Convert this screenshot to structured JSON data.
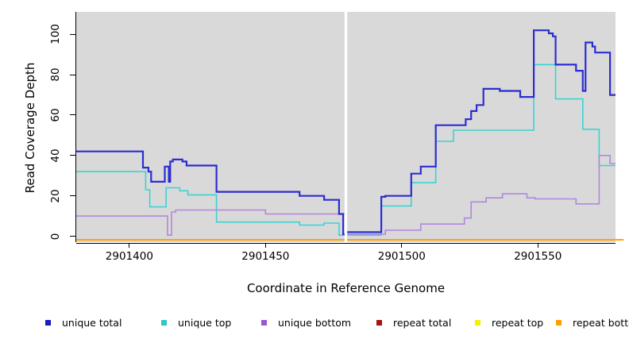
{
  "chart_data": {
    "type": "line",
    "subtype": "step",
    "title": "",
    "xlabel": "Coordinate in Reference Genome",
    "ylabel": "Read Coverage Depth",
    "xlim": [
      2901380.5,
      2901578.5
    ],
    "ylim": [
      0,
      100
    ],
    "x_ticks": [
      2901400,
      2901450,
      2901500,
      2901550
    ],
    "y_ticks": [
      0,
      20,
      40,
      60,
      80,
      100
    ],
    "gap_x": [
      2901479,
      2901480
    ],
    "plot_bg": "#d9d9d9",
    "grid": false,
    "legend_position": "bottom",
    "series": [
      {
        "name": "repeat total",
        "color": "#c00000",
        "line_width": 1.5,
        "segments": [
          [
            [
              2901380.5,
              0
            ],
            [
              2901479,
              0
            ]
          ],
          [
            [
              2901480,
              0
            ],
            [
              2901578.5,
              0
            ]
          ]
        ]
      },
      {
        "name": "repeat top",
        "color": "#f2f200",
        "line_width": 1.5,
        "segments": [
          [
            [
              2901380.5,
              0
            ],
            [
              2901479,
              0
            ]
          ],
          [
            [
              2901480,
              0
            ],
            [
              2901578.5,
              0
            ]
          ]
        ]
      },
      {
        "name": "repeat bottom",
        "color": "#ffa500",
        "line_width": 2,
        "segments": [
          [
            [
              2901380.5,
              0
            ],
            [
              2901479,
              0
            ]
          ],
          [
            [
              2901480,
              0
            ],
            [
              2901581.5,
              0
            ]
          ]
        ]
      },
      {
        "name": "unique top",
        "color": "#3ad3d3",
        "line_width": 1.6,
        "segments": [
          [
            [
              2901380.5,
              32
            ],
            [
              2901406,
              23
            ],
            [
              2901407.5,
              14.5
            ],
            [
              2901413.5,
              24
            ],
            [
              2901418.5,
              22.5
            ],
            [
              2901421.5,
              20.5
            ],
            [
              2901432,
              7
            ],
            [
              2901462.5,
              5.5
            ],
            [
              2901471.5,
              6.5
            ],
            [
              2901477,
              0.5
            ],
            [
              2901479,
              0.5
            ]
          ],
          [
            [
              2901480,
              0.5
            ],
            [
              2901492.5,
              15
            ],
            [
              2901503.5,
              26.5
            ],
            [
              2901512.5,
              47
            ],
            [
              2901519,
              52.5
            ],
            [
              2901548.5,
              85
            ],
            [
              2901556.5,
              68
            ],
            [
              2901566.5,
              53
            ],
            [
              2901572.5,
              35
            ],
            [
              2901578.5,
              35
            ]
          ]
        ]
      },
      {
        "name": "unique bottom",
        "color": "#b287dd",
        "line_width": 1.6,
        "segments": [
          [
            [
              2901380.5,
              10
            ],
            [
              2901414,
              0.5
            ],
            [
              2901415.5,
              12
            ],
            [
              2901417,
              13
            ],
            [
              2901450,
              11
            ],
            [
              2901479,
              11
            ]
          ],
          [
            [
              2901480,
              1
            ],
            [
              2901494,
              3
            ],
            [
              2901507,
              6
            ],
            [
              2901523,
              9
            ],
            [
              2901525.5,
              17
            ],
            [
              2901531,
              19
            ],
            [
              2901537,
              21
            ],
            [
              2901546,
              19
            ],
            [
              2901549,
              18.5
            ],
            [
              2901564,
              16
            ],
            [
              2901572.5,
              40
            ],
            [
              2901576.5,
              36
            ],
            [
              2901578.5,
              36
            ]
          ]
        ]
      },
      {
        "name": "unique total",
        "color": "#2c2cd2",
        "line_width": 2.2,
        "segments": [
          [
            [
              2901380.5,
              42
            ],
            [
              2901405,
              34
            ],
            [
              2901407,
              32
            ],
            [
              2901408,
              27
            ],
            [
              2901413,
              34.5
            ],
            [
              2901414.5,
              27
            ],
            [
              2901415,
              37
            ],
            [
              2901416,
              38
            ],
            [
              2901419.5,
              37
            ],
            [
              2901421,
              35
            ],
            [
              2901432,
              22
            ],
            [
              2901462.5,
              20
            ],
            [
              2901471.5,
              18
            ],
            [
              2901477,
              11
            ],
            [
              2901478.5,
              1
            ],
            [
              2901479,
              1
            ]
          ],
          [
            [
              2901480,
              2
            ],
            [
              2901492.5,
              19.5
            ],
            [
              2901494,
              20
            ],
            [
              2901503.5,
              31
            ],
            [
              2901507,
              34.5
            ],
            [
              2901512.5,
              55
            ],
            [
              2901523.5,
              58
            ],
            [
              2901525.5,
              62
            ],
            [
              2901527.5,
              65
            ],
            [
              2901530,
              73
            ],
            [
              2901536,
              72
            ],
            [
              2901543.5,
              69
            ],
            [
              2901548.5,
              102
            ],
            [
              2901554,
              100.5
            ],
            [
              2901555.5,
              99
            ],
            [
              2901556.5,
              85
            ],
            [
              2901564,
              82
            ],
            [
              2901566.5,
              72
            ],
            [
              2901567.5,
              96
            ],
            [
              2901570,
              94
            ],
            [
              2901571,
              91
            ],
            [
              2901576.5,
              70
            ],
            [
              2901578.5,
              70
            ]
          ]
        ]
      }
    ],
    "legend": [
      {
        "label": "unique total",
        "color": "#1a1ac4"
      },
      {
        "label": "unique top",
        "color": "#2fc7c7"
      },
      {
        "label": "unique bottom",
        "color": "#9a55cf"
      },
      {
        "label": "repeat total",
        "color": "#aa1111"
      },
      {
        "label": "repeat top",
        "color": "#f2f200"
      },
      {
        "label": "repeat bottom",
        "color": "#ff9e00"
      }
    ]
  }
}
